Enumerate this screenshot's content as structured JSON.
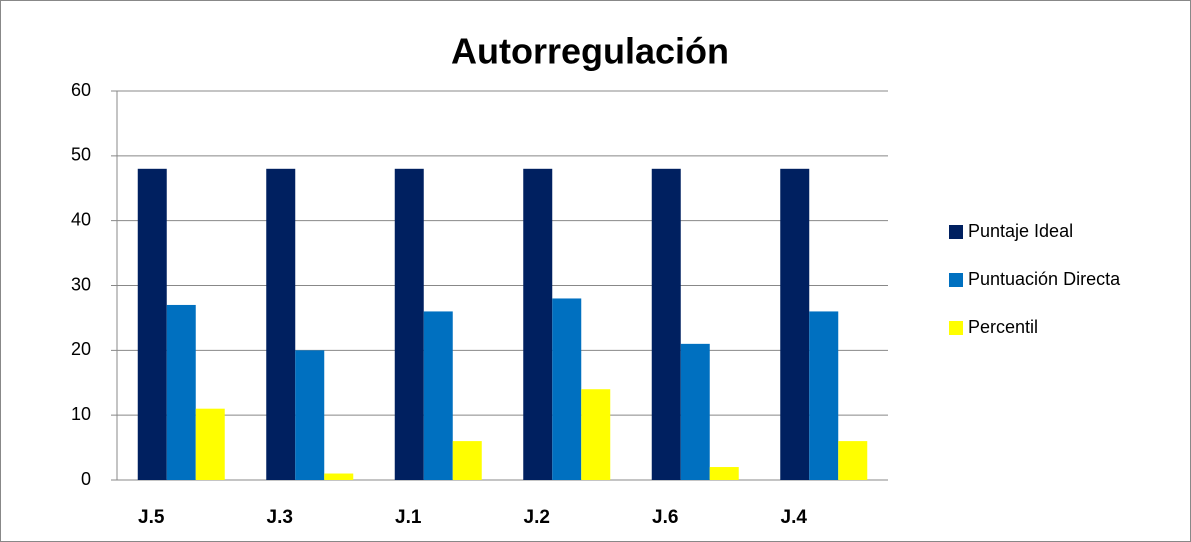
{
  "chart_data": {
    "type": "bar",
    "title": "Autorregulación",
    "categories": [
      "J.5",
      "J.3",
      "J.1",
      "J.2",
      "J.6",
      "J.4"
    ],
    "series": [
      {
        "name": "Puntaje Ideal",
        "color": "#002060",
        "values": [
          48,
          48,
          48,
          48,
          48,
          48
        ]
      },
      {
        "name": "Puntuación Directa",
        "color": "#0070c0",
        "values": [
          27,
          20,
          26,
          28,
          21,
          26
        ]
      },
      {
        "name": "Percentil",
        "color": "#ffff00",
        "values": [
          11,
          1,
          6,
          14,
          2,
          6
        ]
      }
    ],
    "ylim": [
      0,
      60
    ],
    "yticks": [
      0,
      10,
      20,
      30,
      40,
      50,
      60
    ],
    "grid": true,
    "legend": "right"
  }
}
